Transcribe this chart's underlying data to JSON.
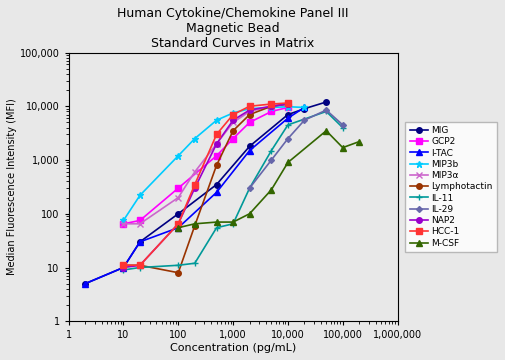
{
  "title": "Human Cytokine/Chemokine Panel III\nMagnetic Bead\nStandard Curves in Matrix",
  "xlabel": "Concentration (pg/mL)",
  "ylabel": "Median Fluorescence Intensity (MFI)",
  "xlim": [
    1.5,
    1000000
  ],
  "ylim": [
    1,
    100000
  ],
  "bg_color": "#e8e8e8",
  "series": [
    {
      "name": "MIG",
      "color": "#000080",
      "marker": "o",
      "markersize": 4,
      "x": [
        2,
        10,
        20,
        100,
        500,
        2000,
        10000,
        20000,
        50000
      ],
      "y": [
        5,
        10,
        30,
        100,
        350,
        1800,
        7000,
        9000,
        12000
      ]
    },
    {
      "name": "GCP2",
      "color": "#FF00FF",
      "marker": "s",
      "markersize": 4,
      "x": [
        10,
        20,
        100,
        500,
        1000,
        2000,
        5000,
        10000
      ],
      "y": [
        65,
        75,
        300,
        1200,
        2500,
        5000,
        8000,
        9500
      ]
    },
    {
      "name": "I-TAC",
      "color": "#0000FF",
      "marker": "^",
      "markersize": 4,
      "x": [
        2,
        10,
        20,
        100,
        500,
        2000,
        10000,
        20000
      ],
      "y": [
        5,
        10,
        30,
        55,
        250,
        1500,
        6000,
        9500
      ]
    },
    {
      "name": "MIP3b",
      "color": "#00CCFF",
      "marker": "*",
      "markersize": 5,
      "x": [
        10,
        20,
        100,
        200,
        500,
        1000,
        2000,
        5000,
        10000,
        20000
      ],
      "y": [
        75,
        220,
        1200,
        2500,
        5500,
        7500,
        9000,
        9500,
        9800,
        9500
      ]
    },
    {
      "name": "MIP3α",
      "color": "#CC66CC",
      "marker": "x",
      "markersize": 5,
      "x": [
        10,
        20,
        100,
        200,
        500,
        1000,
        2000,
        5000,
        10000
      ],
      "y": [
        65,
        65,
        200,
        600,
        2000,
        5000,
        8000,
        10000,
        11000
      ]
    },
    {
      "name": "Lymphotactin",
      "color": "#993300",
      "marker": "o",
      "markersize": 4,
      "x": [
        10,
        20,
        100,
        200,
        500,
        1000,
        2000,
        5000,
        10000
      ],
      "y": [
        11,
        11,
        8,
        60,
        800,
        3500,
        7000,
        10000,
        11000
      ]
    },
    {
      "name": "IL-11",
      "color": "#009999",
      "marker": "+",
      "markersize": 5,
      "x": [
        10,
        20,
        100,
        200,
        500,
        1000,
        2000,
        5000,
        10000,
        50000,
        100000
      ],
      "y": [
        9,
        10,
        11,
        12,
        55,
        65,
        300,
        1500,
        4500,
        8000,
        4000
      ]
    },
    {
      "name": "IL-29",
      "color": "#6666AA",
      "marker": "D",
      "markersize": 3,
      "x": [
        2000,
        5000,
        10000,
        20000,
        50000,
        100000
      ],
      "y": [
        300,
        1000,
        2500,
        5500,
        8500,
        4500
      ]
    },
    {
      "name": "NAP2",
      "color": "#9900CC",
      "marker": "o",
      "markersize": 4,
      "x": [
        10,
        20,
        100,
        200,
        500,
        1000,
        2000,
        5000,
        10000
      ],
      "y": [
        10,
        11,
        65,
        300,
        2000,
        5500,
        8500,
        10000,
        11000
      ]
    },
    {
      "name": "HCC-1",
      "color": "#FF3333",
      "marker": "s",
      "markersize": 4,
      "x": [
        10,
        20,
        100,
        200,
        500,
        1000,
        2000,
        5000,
        10000
      ],
      "y": [
        11,
        11,
        65,
        350,
        3000,
        7000,
        10000,
        11000,
        11500
      ]
    },
    {
      "name": "M-CSF",
      "color": "#336600",
      "marker": "^",
      "markersize": 4,
      "x": [
        100,
        200,
        500,
        1000,
        2000,
        5000,
        10000,
        50000,
        100000,
        200000
      ],
      "y": [
        55,
        65,
        70,
        70,
        100,
        280,
        900,
        3500,
        1700,
        2200
      ]
    }
  ]
}
